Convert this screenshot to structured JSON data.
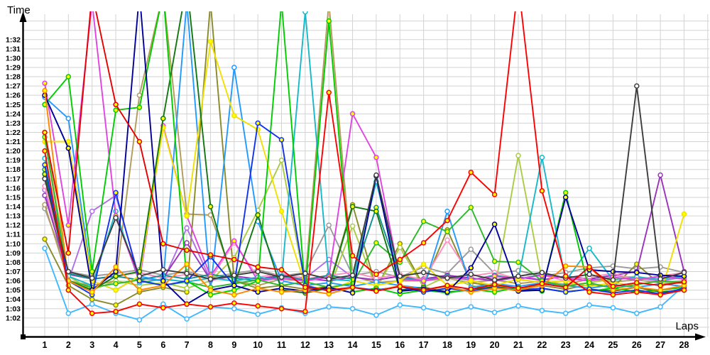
{
  "chart_data": {
    "type": "line",
    "title": "",
    "xlabel": "Laps",
    "ylabel": "Time",
    "grid": true,
    "legend_position": "none",
    "x_axis": {
      "label": "Laps",
      "ticks": [
        1,
        2,
        3,
        4,
        5,
        6,
        7,
        8,
        9,
        10,
        11,
        12,
        13,
        14,
        15,
        16,
        17,
        18,
        19,
        20,
        21,
        22,
        23,
        24,
        25,
        26,
        27,
        28
      ]
    },
    "y_axis": {
      "label": "Time",
      "unit": "m:ss",
      "tick_seconds": [
        62,
        63,
        64,
        65,
        66,
        67,
        68,
        69,
        70,
        71,
        72,
        73,
        74,
        75,
        76,
        77,
        78,
        79,
        80,
        81,
        82,
        83,
        84,
        85,
        86,
        87,
        88,
        89,
        90,
        91,
        92
      ],
      "tick_labels": [
        "1:02",
        "1:03",
        "1:04",
        "1:05",
        "1:06",
        "1:07",
        "1:08",
        "1:09",
        "1:10",
        "1:11",
        "1:12",
        "1:13",
        "1:14",
        "1:15",
        "1:16",
        "1:17",
        "1:18",
        "1:19",
        "1:20",
        "1:21",
        "1:22",
        "1:23",
        "1:24",
        "1:25",
        "1:26",
        "1:27",
        "1:28",
        "1:29",
        "1:30",
        "1:31",
        "1:32"
      ],
      "range_seconds": [
        60,
        94.7
      ]
    },
    "marker_fill_colors": {
      "yellow": "#ffff00",
      "white": "#ffffff"
    },
    "series": [
      {
        "name": "gray",
        "color": "#9a9a9a",
        "marker": "white",
        "values": [
          73.8,
          67,
          66.5,
          66.8,
          67.2,
          66.6,
          67,
          66.4,
          66.8,
          67.2,
          66.5,
          66.9,
          72,
          66.6,
          67,
          66.4,
          67.5,
          66.8,
          69.4,
          66.8,
          67.1,
          66.5,
          66.9,
          67.4,
          67.6,
          67.3,
          67.5,
          66.9
        ]
      },
      {
        "name": "khaki",
        "color": "#b39b59",
        "marker": "white",
        "values": [
          74.2,
          66,
          65.5,
          66,
          86,
          97,
          73.2,
          73.1,
          66,
          65.5,
          66.2,
          66,
          96,
          66.5,
          65.8,
          66,
          66,
          66.3,
          65.8,
          66.1,
          65.7,
          66,
          65.6,
          66.2,
          65.9,
          66.1,
          65.8,
          66
        ]
      },
      {
        "name": "olive",
        "color": "#8a8a2a",
        "marker": "yellow",
        "values": [
          70.5,
          65.5,
          64,
          63.4,
          64.8,
          65.3,
          64.8,
          96,
          66,
          65.2,
          65.5,
          65.1,
          65.4,
          74.2,
          65.2,
          70,
          65.5,
          71.5,
          65.8,
          65.4,
          65.2,
          65.5,
          65.1,
          65.6,
          65.3,
          67.8,
          65.6,
          65.9
        ]
      },
      {
        "name": "yellow-green",
        "color": "#aacc44",
        "marker": "white",
        "values": [
          82,
          66.5,
          65,
          66,
          65.5,
          65.8,
          65.2,
          66,
          68.5,
          73.6,
          79,
          65.5,
          65,
          71.9,
          65.2,
          69.6,
          65.3,
          66.5,
          65.5,
          65,
          79.5,
          66,
          65.5,
          65.8,
          66.2,
          66.5,
          66,
          65.7
        ]
      },
      {
        "name": "violet",
        "color": "#b06fe8",
        "marker": "white",
        "values": [
          75.8,
          66,
          73.5,
          75.2,
          66.3,
          66,
          71.7,
          66.1,
          66.5,
          66.2,
          66.6,
          66.3,
          68.3,
          66.4,
          66.1,
          66.5,
          66.2,
          66.6,
          66.3,
          66,
          66.4,
          66.1,
          66.5,
          66.2,
          66.6,
          66.3,
          66,
          66.4
        ]
      },
      {
        "name": "purple",
        "color": "#9933bb",
        "marker": "white",
        "values": [
          75.2,
          66.7,
          66.2,
          66.5,
          66.9,
          66.3,
          70.1,
          66.1,
          66.5,
          66.2,
          66.6,
          66.3,
          66,
          66.4,
          66.1,
          66.5,
          66.2,
          66.6,
          66.3,
          66,
          66.4,
          66.1,
          66.5,
          66.2,
          66.6,
          67,
          77.4,
          67
        ]
      },
      {
        "name": "pink",
        "color": "#ff8fc0",
        "marker": "white",
        "values": [
          76.2,
          66.8,
          66.2,
          66.5,
          66.9,
          66.3,
          66.7,
          66.2,
          70.1,
          66.4,
          66.8,
          66.2,
          66.6,
          66.9,
          66.3,
          66.7,
          66.1,
          70.4,
          66.5,
          66.9,
          66.2,
          66.6,
          66,
          66.4,
          66.8,
          66.1,
          66.5,
          66.9
        ]
      },
      {
        "name": "teal",
        "color": "#0f8f8f",
        "marker": "yellow",
        "values": [
          78,
          66.8,
          66.2,
          66.5,
          66.1,
          66.6,
          66.2,
          66.7,
          66.3,
          66,
          66.5,
          66.1,
          66.6,
          66.2,
          73.9,
          66.4,
          66,
          66.5,
          66.1,
          66.6,
          66.2,
          66.7,
          66.3,
          66,
          66.4,
          66.1,
          66.5,
          66.2
        ]
      },
      {
        "name": "cyan",
        "color": "#18b8c8",
        "marker": "white",
        "values": [
          79.2,
          66.5,
          65.5,
          73.5,
          65.8,
          66.2,
          65.9,
          66.3,
          66,
          66.4,
          66.1,
          95,
          66.2,
          66,
          76.7,
          66.3,
          66,
          66.4,
          66.1,
          66.5,
          66.2,
          79.3,
          66,
          69.5,
          66.1,
          66.4,
          66.2,
          66.5
        ]
      },
      {
        "name": "sky-blue",
        "color": "#3fb8ff",
        "marker": "white",
        "values": [
          69.5,
          62.5,
          63.5,
          62.5,
          61.8,
          63.5,
          61.9,
          63.2,
          63,
          62.4,
          63.1,
          62.5,
          63.2,
          63,
          62.3,
          63.4,
          63.1,
          62.5,
          63.2,
          62.6,
          63.3,
          62.8,
          62.5,
          63.4,
          63.1,
          62.5,
          63.2,
          65.5
        ]
      },
      {
        "name": "dodger-blue",
        "color": "#2299ff",
        "marker": "white",
        "values": [
          85.8,
          83.5,
          66,
          65,
          66.5,
          66,
          96,
          65,
          89,
          72.4,
          66,
          65.5,
          65.8,
          65.4,
          65.9,
          65.5,
          65.2,
          73.5,
          65.3,
          65.7,
          65.4,
          65.8,
          65.5,
          65.2,
          65.6,
          65.3,
          65.7,
          65.4
        ]
      },
      {
        "name": "magenta",
        "color": "#e044e0",
        "marker": "yellow",
        "values": [
          87.3,
          72,
          96,
          73,
          66,
          82.7,
          73,
          66.5,
          70.3,
          66,
          66.3,
          66,
          66.4,
          84,
          79.3,
          66.2,
          66,
          66.4,
          66.1,
          66.5,
          66.2,
          66.6,
          66.3,
          66,
          66.4,
          66.1,
          66.5,
          66.2
        ]
      },
      {
        "name": "yellow",
        "color": "#f0e000",
        "marker": "yellow",
        "values": [
          81,
          81,
          66,
          65,
          66.5,
          82.5,
          73,
          91.8,
          83.8,
          82.3,
          73.5,
          65.5,
          65,
          66,
          65.5,
          66,
          67.8,
          65.5,
          66,
          65.5,
          66.2,
          65.8,
          66,
          65.4,
          65.8,
          65.5,
          64.5,
          73.2
        ]
      },
      {
        "name": "green-medium",
        "color": "#2db82d",
        "marker": "yellow",
        "values": [
          81.5,
          66,
          65.3,
          65.7,
          66.1,
          65.5,
          65.9,
          65.3,
          65.7,
          66.1,
          65.5,
          65.9,
          65.3,
          65.7,
          70.1,
          68,
          72.4,
          71.3,
          73.9,
          68.1,
          68,
          66,
          65.4,
          65.8,
          65.2,
          65.6,
          66,
          65.8
        ]
      },
      {
        "name": "green-dark",
        "color": "#117711",
        "marker": "yellow",
        "values": [
          77.5,
          66,
          65,
          66.5,
          67,
          83.5,
          98,
          74,
          65.5,
          73.1,
          65,
          64.7,
          65.2,
          74,
          73.5,
          65,
          65.3,
          64.8,
          65,
          65.4,
          64.9,
          65.2,
          64.8,
          65.1,
          64.9,
          65.3,
          64.8,
          65
        ]
      },
      {
        "name": "green-bright",
        "color": "#00cc00",
        "marker": "yellow",
        "values": [
          85,
          88,
          67,
          84.4,
          84.7,
          97,
          66,
          64.5,
          65,
          66,
          96,
          65,
          94,
          64.8,
          65.2,
          64.6,
          65,
          64.7,
          65.1,
          64.8,
          65.3,
          64.9,
          75.5,
          64.9,
          65.2,
          64.8,
          65,
          65.3
        ]
      },
      {
        "name": "blue",
        "color": "#1133ee",
        "marker": "yellow",
        "values": [
          78.5,
          66,
          64.5,
          75.5,
          66,
          65.5,
          66,
          68.6,
          65.5,
          83,
          81.2,
          65.5,
          64.9,
          65.3,
          65,
          65.4,
          64.8,
          65.2,
          64.9,
          65.3,
          65,
          65.2,
          64.8,
          65.1,
          64.7,
          65,
          64.6,
          65.2
        ]
      },
      {
        "name": "navy",
        "color": "#000099",
        "marker": "yellow",
        "values": [
          86,
          80.3,
          65,
          67,
          97,
          66,
          63.5,
          65,
          65.5,
          64.8,
          65.2,
          64.9,
          65.3,
          64.7,
          77.3,
          64.9,
          65.1,
          64.8,
          67.4,
          72.1,
          64.9,
          65,
          75,
          67.2,
          67,
          66.9,
          66.6,
          66.5
        ]
      },
      {
        "name": "orange",
        "color": "#ff8800",
        "marker": "yellow",
        "values": [
          86.5,
          66,
          64.8,
          67.5,
          65,
          65.5,
          67.8,
          65,
          64.5,
          65.2,
          64.8,
          65,
          64.6,
          65.3,
          64.9,
          65.5,
          65,
          65.4,
          64.8,
          65.2,
          65,
          65.5,
          67.6,
          67.5,
          65,
          65.3,
          65,
          65.5
        ]
      },
      {
        "name": "dark-gray",
        "color": "#3d3d3d",
        "marker": "white",
        "values": [
          77,
          67,
          66.3,
          72.8,
          66.5,
          67.2,
          66.8,
          66.2,
          66.6,
          67,
          66.4,
          66.8,
          66.2,
          66.6,
          77.4,
          66.5,
          66.9,
          66.3,
          66.7,
          66.1,
          66.5,
          66.9,
          66.3,
          66.7,
          66.1,
          87,
          66.2,
          66.9
        ]
      },
      {
        "name": "red-2",
        "color": "#e60000",
        "marker": "yellow",
        "values": [
          82,
          69,
          97,
          85,
          81,
          70,
          69.3,
          68.8,
          68.3,
          67.5,
          67.2,
          65.3,
          65,
          65.3,
          64.9,
          65.4,
          65,
          65.5,
          65.1,
          65.6,
          65.2,
          65.7,
          65.3,
          67.5,
          65.4,
          65.8,
          65.5,
          65.9
        ]
      },
      {
        "name": "red-1",
        "color": "#ff0000",
        "marker": "yellow",
        "values": [
          80,
          65,
          62.5,
          62.7,
          63.5,
          63.1,
          63.5,
          63.2,
          63.6,
          63.3,
          63,
          62.7,
          86.3,
          68.7,
          66.7,
          68.3,
          70.1,
          72.5,
          77.7,
          75.3,
          98,
          75.7,
          66.5,
          64.8,
          64.5,
          64.8,
          64.5,
          65
        ]
      }
    ]
  },
  "labels": {
    "time_axis": "Time",
    "laps_axis": "Laps"
  }
}
